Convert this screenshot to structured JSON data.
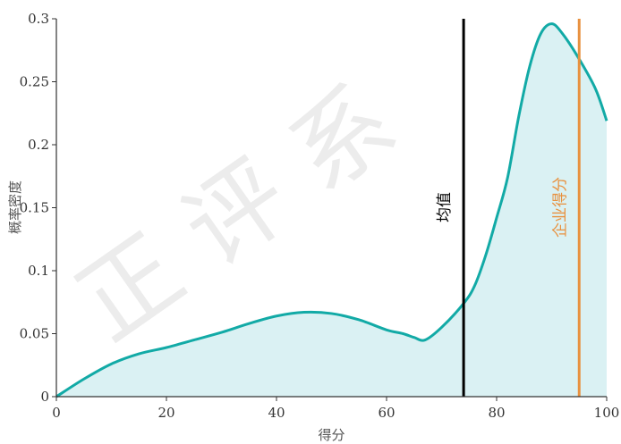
{
  "chart_data": {
    "type": "area",
    "title": "",
    "xlabel": "得分",
    "ylabel": "概率密度",
    "xlim": [
      0,
      100
    ],
    "ylim": [
      0,
      0.3
    ],
    "x_ticks": [
      0,
      20,
      40,
      60,
      80,
      100
    ],
    "x_tick_labels": [
      "0",
      "20",
      "40",
      "60",
      "80",
      "100"
    ],
    "y_ticks": [
      0,
      0.05,
      0.1,
      0.15,
      0.2,
      0.25,
      0.3
    ],
    "y_tick_labels": [
      "0",
      "0.05",
      "0.1",
      "0.15",
      "0.2",
      "0.25",
      "0.3"
    ],
    "grid": false,
    "legend": "none",
    "series": [
      {
        "x": [
          0,
          5,
          10,
          15,
          20,
          25,
          30,
          35,
          40,
          45,
          50,
          55,
          60,
          63,
          65,
          67,
          70,
          74,
          76,
          78,
          80,
          82,
          84,
          86,
          88,
          90,
          92,
          95,
          98,
          100
        ],
        "y": [
          0,
          0.014,
          0.026,
          0.034,
          0.039,
          0.045,
          0.051,
          0.058,
          0.064,
          0.067,
          0.066,
          0.061,
          0.053,
          0.05,
          0.047,
          0.045,
          0.055,
          0.074,
          0.088,
          0.112,
          0.142,
          0.174,
          0.222,
          0.262,
          0.288,
          0.296,
          0.288,
          0.268,
          0.244,
          0.219
        ],
        "color": "#12aaa6",
        "fill": "#daf1f3"
      }
    ],
    "annotations": [
      {
        "label": "均值",
        "x": 74,
        "color": "#000000"
      },
      {
        "label": "企业得分",
        "x": 95,
        "color": "#e8913f"
      }
    ],
    "watermark": "正 评 系"
  }
}
